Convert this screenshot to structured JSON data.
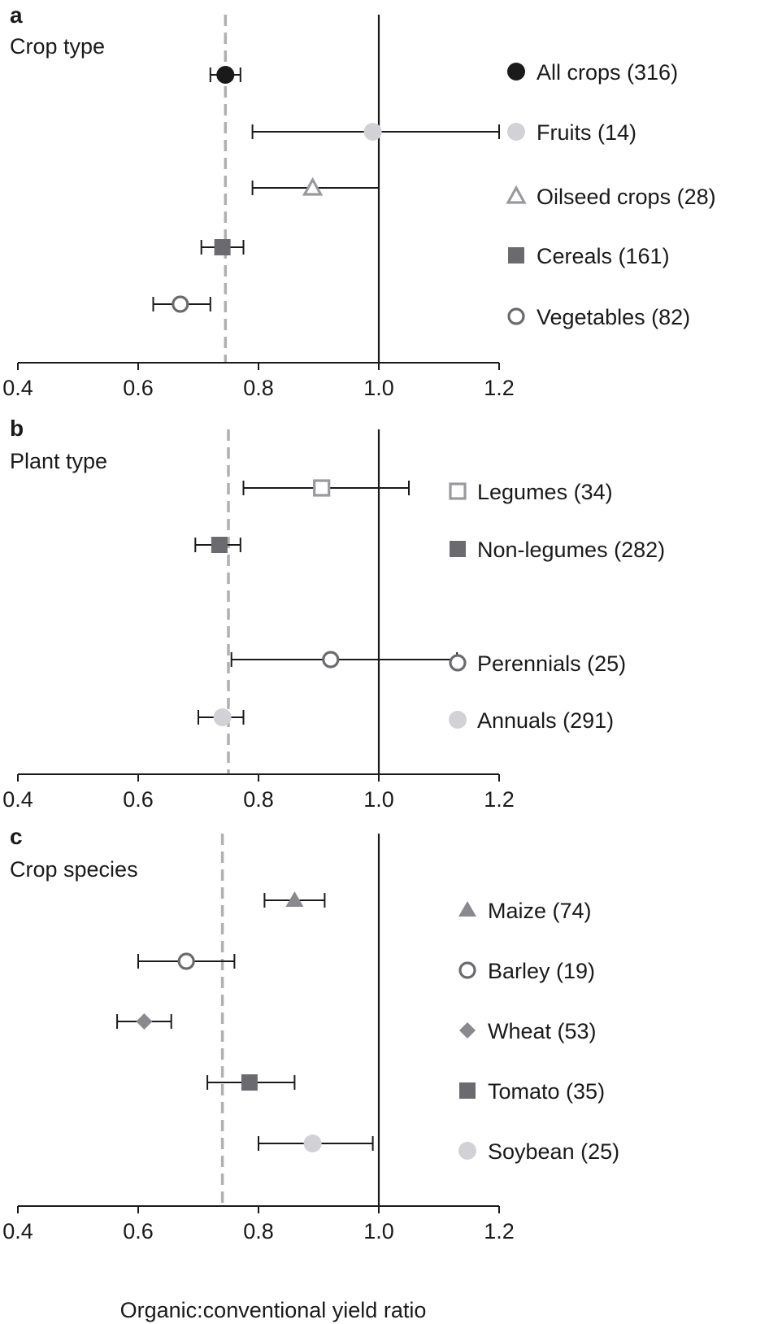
{
  "figure": {
    "xlabel": "Organic:conventional yield ratio"
  },
  "colors": {
    "black": "#1a1a1a",
    "dark_grey": "#6b6b6f",
    "mid_grey": "#9a9a9e",
    "light_grey": "#d2d2d6",
    "dashed_line": "#b0b0b0"
  },
  "chart_data": [
    {
      "type": "scatter",
      "panel": "a",
      "title": "Crop type",
      "xlim": [
        0.4,
        1.2
      ],
      "xticks": [
        "0.4",
        "0.6",
        "0.8",
        "1.0",
        "1.2"
      ],
      "reference_line": 1.0,
      "mean_line": 0.745,
      "series": [
        {
          "name": "All crops (316)",
          "mean": 0.745,
          "ci_low": 0.72,
          "ci_high": 0.77,
          "marker": "circle-filled",
          "color": "#1a1a1a"
        },
        {
          "name": "Fruits (14)",
          "mean": 0.99,
          "ci_low": 0.79,
          "ci_high": 1.2,
          "marker": "circle-filled",
          "color": "#d2d2d6"
        },
        {
          "name": "Oilseed crops (28)",
          "mean": 0.89,
          "ci_low": 0.79,
          "ci_high": 1.0,
          "marker": "triangle-open",
          "color": "#9a9a9e"
        },
        {
          "name": "Cereals (161)",
          "mean": 0.74,
          "ci_low": 0.705,
          "ci_high": 0.775,
          "marker": "square-filled",
          "color": "#6b6b6f"
        },
        {
          "name": "Vegetables (82)",
          "mean": 0.67,
          "ci_low": 0.625,
          "ci_high": 0.72,
          "marker": "circle-open",
          "color": "#6b6b6f"
        }
      ]
    },
    {
      "type": "scatter",
      "panel": "b",
      "title": "Plant type",
      "xlim": [
        0.4,
        1.2
      ],
      "xticks": [
        "0.4",
        "0.6",
        "0.8",
        "1.0",
        "1.2"
      ],
      "reference_line": 1.0,
      "mean_line": 0.75,
      "series": [
        {
          "name": "Legumes (34)",
          "mean": 0.905,
          "ci_low": 0.775,
          "ci_high": 1.05,
          "marker": "square-open",
          "color": "#9a9a9e"
        },
        {
          "name": "Non-legumes (282)",
          "mean": 0.735,
          "ci_low": 0.695,
          "ci_high": 0.77,
          "marker": "square-filled",
          "color": "#6b6b6f"
        },
        {
          "name": "Perennials (25)",
          "mean": 0.92,
          "ci_low": 0.755,
          "ci_high": 1.13,
          "marker": "circle-open",
          "color": "#6b6b6f"
        },
        {
          "name": "Annuals (291)",
          "mean": 0.74,
          "ci_low": 0.7,
          "ci_high": 0.775,
          "marker": "circle-filled",
          "color": "#d2d2d6"
        }
      ]
    },
    {
      "type": "scatter",
      "panel": "c",
      "title": "Crop species",
      "xlim": [
        0.4,
        1.2
      ],
      "xticks": [
        "0.4",
        "0.6",
        "0.8",
        "1.0",
        "1.2"
      ],
      "reference_line": 1.0,
      "mean_line": 0.74,
      "series": [
        {
          "name": "Maize (74)",
          "mean": 0.86,
          "ci_low": 0.81,
          "ci_high": 0.91,
          "marker": "triangle-filled",
          "color": "#8a8a8e"
        },
        {
          "name": "Barley (19)",
          "mean": 0.68,
          "ci_low": 0.6,
          "ci_high": 0.76,
          "marker": "circle-open",
          "color": "#6b6b6f"
        },
        {
          "name": "Wheat (53)",
          "mean": 0.61,
          "ci_low": 0.565,
          "ci_high": 0.655,
          "marker": "diamond-filled",
          "color": "#8a8a8e"
        },
        {
          "name": "Tomato (35)",
          "mean": 0.785,
          "ci_low": 0.715,
          "ci_high": 0.86,
          "marker": "square-filled",
          "color": "#6b6b6f"
        },
        {
          "name": "Soybean (25)",
          "mean": 0.89,
          "ci_low": 0.8,
          "ci_high": 0.99,
          "marker": "circle-filled",
          "color": "#d2d2d6"
        }
      ]
    }
  ]
}
